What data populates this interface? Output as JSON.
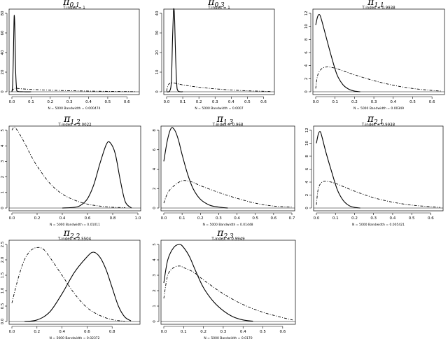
{
  "chart_data": [
    {
      "type": "line",
      "title_main": "π",
      "title_sub": "0,1",
      "index_label": "T-index = 1",
      "footer_label": "N = 5000   Bandwidth = 0.000474",
      "xlim": [
        0,
        0.65
      ],
      "ylim": [
        0,
        80
      ],
      "xticks": [
        "0.0",
        "0.1",
        "0.2",
        "0.3",
        "0.4",
        "0.5",
        "0.6"
      ],
      "xtick_values": [
        0,
        0.1,
        0.2,
        0.3,
        0.4,
        0.5,
        0.6
      ],
      "yticks": [
        "0",
        "20",
        "40",
        "60",
        "80"
      ],
      "ytick_values": [
        0,
        20,
        40,
        60,
        80
      ],
      "series": [
        {
          "style": "solid",
          "x": [
            0.0,
            0.004,
            0.008,
            0.011,
            0.013,
            0.016,
            0.019,
            0.024,
            0.03,
            0.06,
            0.1
          ],
          "y": [
            0,
            8,
            40,
            72,
            77,
            60,
            25,
            4,
            0.5,
            0,
            0
          ]
        },
        {
          "style": "dashdot",
          "x": [
            0.0,
            0.01,
            0.02,
            0.05,
            0.1,
            0.2,
            0.3,
            0.4,
            0.5,
            0.6,
            0.65
          ],
          "y": [
            0.5,
            3,
            3.6,
            3.0,
            2.4,
            1.6,
            1.1,
            0.7,
            0.4,
            0.2,
            0.1
          ]
        }
      ]
    },
    {
      "type": "line",
      "title_main": "π",
      "title_sub": "0,3",
      "index_label": "T-index = 1",
      "footer_label": "N = 5000   Bandwidth = 0.0007",
      "xlim": [
        0,
        0.65
      ],
      "ylim": [
        0,
        40
      ],
      "xticks": [
        "0.0",
        "0.1",
        "0.2",
        "0.3",
        "0.4",
        "0.5",
        "0.6"
      ],
      "xtick_values": [
        0,
        0.1,
        0.2,
        0.3,
        0.4,
        0.5,
        0.6
      ],
      "yticks": [
        "0",
        "10",
        "20",
        "30",
        "40"
      ],
      "ytick_values": [
        0,
        10,
        20,
        30,
        40
      ],
      "series": [
        {
          "style": "solid",
          "x": [
            0.0,
            0.02,
            0.03,
            0.036,
            0.042,
            0.046,
            0.05,
            0.055,
            0.062,
            0.07,
            0.1
          ],
          "y": [
            0,
            0.5,
            6,
            25,
            40,
            42,
            36,
            20,
            5,
            0.5,
            0
          ]
        },
        {
          "style": "dashdot",
          "x": [
            0.0,
            0.01,
            0.03,
            0.06,
            0.1,
            0.2,
            0.3,
            0.4,
            0.5,
            0.6,
            0.65
          ],
          "y": [
            0.3,
            3.5,
            4.5,
            4.2,
            3.5,
            2.3,
            1.5,
            0.9,
            0.5,
            0.25,
            0.1
          ]
        }
      ]
    },
    {
      "type": "line",
      "title_main": "π",
      "title_sub": "1,1",
      "index_label": "T-index = 0.9938",
      "footer_label": "N = 5000   Bandwidth = 0.00349",
      "xlim": [
        0,
        0.65
      ],
      "ylim": [
        0,
        12
      ],
      "xticks": [
        "0.0",
        "0.1",
        "0.2",
        "0.3",
        "0.4",
        "0.5",
        "0.6"
      ],
      "xtick_values": [
        0,
        0.1,
        0.2,
        0.3,
        0.4,
        0.5,
        0.6
      ],
      "yticks": [
        "0",
        "2",
        "4",
        "6",
        "8",
        "10",
        "12"
      ],
      "ytick_values": [
        0,
        2,
        4,
        6,
        8,
        10,
        12
      ],
      "series": [
        {
          "style": "solid",
          "x": [
            0.0,
            0.01,
            0.02,
            0.03,
            0.05,
            0.08,
            0.11,
            0.14,
            0.17,
            0.2,
            0.23
          ],
          "y": [
            10.2,
            11.5,
            11.8,
            11.0,
            8.8,
            5.5,
            2.6,
            1.1,
            0.4,
            0.1,
            0
          ]
        },
        {
          "style": "dashdot",
          "x": [
            0.0,
            0.01,
            0.03,
            0.06,
            0.1,
            0.15,
            0.2,
            0.3,
            0.4,
            0.5,
            0.6,
            0.65
          ],
          "y": [
            0.5,
            2.5,
            3.5,
            3.8,
            3.6,
            3.1,
            2.6,
            1.7,
            1.0,
            0.5,
            0.2,
            0.1
          ]
        }
      ]
    },
    {
      "type": "line",
      "title_main": "π",
      "title_sub": "1,2",
      "index_label": "T-index = 2.0022",
      "footer_label": "N = 5000   Bandwidth = 0.01011",
      "xlim": [
        0,
        1
      ],
      "ylim": [
        0,
        5
      ],
      "xticks": [
        "0.0",
        "0.2",
        "0.4",
        "0.6",
        "0.8",
        "1.0"
      ],
      "xtick_values": [
        0,
        0.2,
        0.4,
        0.6,
        0.8,
        1.0
      ],
      "yticks": [
        "0",
        "1",
        "2",
        "3",
        "4",
        "5"
      ],
      "ytick_values": [
        0,
        1,
        2,
        3,
        4,
        5
      ],
      "series": [
        {
          "style": "solid",
          "x": [
            0.4,
            0.5,
            0.55,
            0.6,
            0.65,
            0.7,
            0.75,
            0.78,
            0.82,
            0.86,
            0.9,
            0.95
          ],
          "y": [
            0,
            0.05,
            0.2,
            0.6,
            1.5,
            2.9,
            4.1,
            4.2,
            3.5,
            1.8,
            0.4,
            0
          ]
        },
        {
          "style": "dashdot",
          "x": [
            0.0,
            0.02,
            0.05,
            0.1,
            0.15,
            0.2,
            0.3,
            0.4,
            0.5,
            0.6,
            0.7,
            0.8,
            0.9
          ],
          "y": [
            5.0,
            5.2,
            4.9,
            4.2,
            3.4,
            2.7,
            1.6,
            0.9,
            0.5,
            0.25,
            0.12,
            0.05,
            0.02
          ]
        }
      ]
    },
    {
      "type": "line",
      "title_main": "π",
      "title_sub": "1,3",
      "index_label": "T-index = 0.968",
      "footer_label": "N = 5000   Bandwidth = 0.01448",
      "xlim": [
        0,
        0.7
      ],
      "ylim": [
        0,
        8
      ],
      "xticks": [
        "0.0",
        "0.1",
        "0.2",
        "0.3",
        "0.4",
        "0.5",
        "0.6",
        "0.7"
      ],
      "xtick_values": [
        0,
        0.1,
        0.2,
        0.3,
        0.4,
        0.5,
        0.6,
        0.7
      ],
      "yticks": [
        "0",
        "2",
        "4",
        "6",
        "8"
      ],
      "ytick_values": [
        0,
        2,
        4,
        6,
        8
      ],
      "series": [
        {
          "style": "solid",
          "x": [
            0.0,
            0.02,
            0.04,
            0.06,
            0.08,
            0.1,
            0.13,
            0.16,
            0.2,
            0.25,
            0.3,
            0.35
          ],
          "y": [
            4.8,
            7.0,
            8.2,
            8.0,
            7.0,
            5.5,
            3.5,
            2.0,
            0.9,
            0.3,
            0.1,
            0
          ]
        },
        {
          "style": "dashdot",
          "x": [
            0.0,
            0.02,
            0.05,
            0.1,
            0.15,
            0.2,
            0.3,
            0.4,
            0.5,
            0.6,
            0.7
          ],
          "y": [
            0.5,
            1.5,
            2.2,
            2.8,
            2.7,
            2.3,
            1.6,
            1.0,
            0.5,
            0.2,
            0.1
          ]
        }
      ]
    },
    {
      "type": "line",
      "title_main": "π",
      "title_sub": "2,1",
      "index_label": "T-index = 0.9938",
      "footer_label": "N = 5000   Bandwidth = 0.005421",
      "xlim": [
        0,
        0.65
      ],
      "ylim": [
        0,
        12
      ],
      "xticks": [
        "0.0",
        "0.1",
        "0.2",
        "0.3",
        "0.4",
        "0.5",
        "0.6"
      ],
      "xtick_values": [
        0,
        0.1,
        0.2,
        0.3,
        0.4,
        0.5,
        0.6
      ],
      "yticks": [
        "0",
        "2",
        "4",
        "6",
        "8",
        "10",
        "12"
      ],
      "ytick_values": [
        0,
        2,
        4,
        6,
        8,
        10,
        12
      ],
      "series": [
        {
          "style": "solid",
          "x": [
            0.0,
            0.01,
            0.02,
            0.03,
            0.05,
            0.08,
            0.11,
            0.14,
            0.17,
            0.2,
            0.23
          ],
          "y": [
            10.0,
            11.4,
            11.8,
            10.9,
            8.6,
            5.6,
            2.8,
            1.2,
            0.4,
            0.1,
            0
          ]
        },
        {
          "style": "dashdot",
          "x": [
            0.0,
            0.01,
            0.03,
            0.06,
            0.1,
            0.15,
            0.2,
            0.3,
            0.4,
            0.5,
            0.6,
            0.65
          ],
          "y": [
            0.5,
            3.0,
            4.0,
            4.1,
            3.8,
            3.2,
            2.6,
            1.6,
            0.9,
            0.45,
            0.2,
            0.1
          ]
        }
      ]
    },
    {
      "type": "line",
      "title_main": "π",
      "title_sub": "2,2",
      "index_label": "T-index = 2.5504",
      "footer_label": "N = 5000   Bandwidth = 0.02372",
      "xlim": [
        0,
        1
      ],
      "ylim": [
        0,
        2.5
      ],
      "xticks": [
        "0.0",
        "0.2",
        "0.4",
        "0.6",
        "0.8"
      ],
      "xtick_values": [
        0,
        0.2,
        0.4,
        0.6,
        0.8
      ],
      "yticks": [
        "0.0",
        "0.5",
        "1.0",
        "1.5",
        "2.0",
        "2.5"
      ],
      "ytick_values": [
        0,
        0.5,
        1.0,
        1.5,
        2.0,
        2.5
      ],
      "series": [
        {
          "style": "solid",
          "x": [
            0.1,
            0.2,
            0.3,
            0.4,
            0.5,
            0.6,
            0.65,
            0.7,
            0.75,
            0.8,
            0.85,
            0.9,
            0.95
          ],
          "y": [
            0,
            0.05,
            0.3,
            0.9,
            1.6,
            2.1,
            2.25,
            2.1,
            1.7,
            1.1,
            0.5,
            0.15,
            0.02
          ]
        },
        {
          "style": "dashdot",
          "x": [
            0.0,
            0.05,
            0.1,
            0.15,
            0.2,
            0.25,
            0.3,
            0.4,
            0.5,
            0.6,
            0.7,
            0.8,
            0.9
          ],
          "y": [
            0.6,
            1.4,
            2.0,
            2.3,
            2.4,
            2.35,
            2.1,
            1.5,
            0.9,
            0.45,
            0.2,
            0.06,
            0.01
          ]
        }
      ]
    },
    {
      "type": "line",
      "title_main": "π",
      "title_sub": "2,3",
      "index_label": "T-index = 0.9949",
      "footer_label": "N = 5000   Bandwidth = 0.0170",
      "xlim": [
        0,
        0.65
      ],
      "ylim": [
        0,
        5
      ],
      "xticks": [
        "0.0",
        "0.1",
        "0.2",
        "0.3",
        "0.4",
        "0.5",
        "0.6"
      ],
      "xtick_values": [
        0,
        0.1,
        0.2,
        0.3,
        0.4,
        0.5,
        0.6
      ],
      "yticks": [
        "0",
        "1",
        "2",
        "3",
        "4",
        "5"
      ],
      "ytick_values": [
        0,
        1,
        2,
        3,
        4,
        5
      ],
      "series": [
        {
          "style": "solid",
          "x": [
            0.0,
            0.02,
            0.05,
            0.08,
            0.1,
            0.13,
            0.16,
            0.2,
            0.25,
            0.3,
            0.35,
            0.4,
            0.45
          ],
          "y": [
            2.5,
            4.0,
            4.8,
            5.0,
            4.8,
            4.2,
            3.3,
            2.2,
            1.3,
            0.7,
            0.3,
            0.1,
            0.02
          ]
        },
        {
          "style": "dashdot",
          "x": [
            0.0,
            0.02,
            0.05,
            0.08,
            0.1,
            0.15,
            0.2,
            0.3,
            0.4,
            0.5,
            0.6,
            0.65
          ],
          "y": [
            1.5,
            3.0,
            3.5,
            3.6,
            3.5,
            3.2,
            2.7,
            1.8,
            1.1,
            0.6,
            0.25,
            0.1
          ]
        }
      ]
    }
  ]
}
